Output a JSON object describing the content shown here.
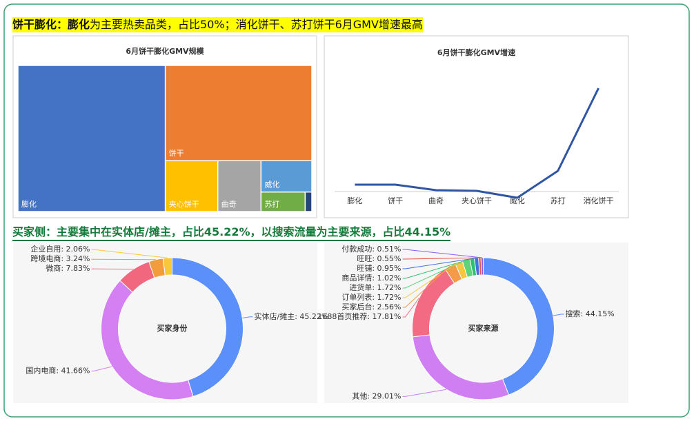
{
  "headings": [
    {
      "lead": "饼干膨化：膨化",
      "text": "为主要热卖品类，占比50%；消化饼干、苏打饼干6月GMV增速最高"
    },
    {
      "text": "买家侧：主要集中在实体店/摊主，占比45.22%，以搜索流量为主要来源，占比44.15%"
    }
  ],
  "chart_data": [
    {
      "type": "treemap",
      "title": "6月饼干膨化GMV规模",
      "categories": [
        "膨化",
        "饼干",
        "夹心饼干",
        "曲奇",
        "威化",
        "苏打",
        null
      ],
      "values": [
        50,
        32.4,
        6.2,
        5.1,
        3.7,
        2,
        0.3
      ],
      "colors": [
        "#4472c4",
        "#ed7d31",
        "#ffc000",
        "#a5a5a5",
        "#5b9bd5",
        "#70ad47",
        "#264478"
      ]
    },
    {
      "type": "line",
      "title": "6月饼干膨化GMV增速",
      "categories": [
        "膨化",
        "饼干",
        "曲奇",
        "夹心饼干",
        "威化",
        "苏打",
        "消化饼干"
      ],
      "values": [
        10,
        10,
        2,
        1,
        -9,
        30,
        150
      ],
      "color": "#2f55a4"
    },
    {
      "type": "donut",
      "center_label": "买家身份",
      "values": [
        45.22,
        41.66,
        7.83,
        3.24,
        2.06
      ],
      "value_labels": [
        "实体店/摊主: 45.22%",
        "国内电商: 41.66%",
        "微商: 7.83%",
        "跨境电商: 3.24%",
        "企业自用: 2.06%"
      ],
      "colors": [
        "#5b8ff9",
        "#d580f2",
        "#f0677e",
        "#f39c3c",
        "#f8c83a"
      ]
    },
    {
      "type": "donut",
      "center_label": "买家来源",
      "values": [
        44.15,
        29.01,
        17.81,
        2.56,
        1.72,
        1.72,
        1.02,
        0.95,
        0.55,
        0.51
      ],
      "value_labels": [
        "搜索: 44.15%",
        "其他: 29.01%",
        "1688首页推荐: 17.81%",
        "买家后台: 2.56%",
        "订单列表: 1.72%",
        "进货单: 1.72%",
        "商品详情: 1.02%",
        "旺铺: 0.95%",
        "旺旺: 0.55%",
        "付款成功: 0.51%"
      ],
      "colors": [
        "#5b8ff9",
        "#d07ff2",
        "#f26b82",
        "#f59a47",
        "#f8c63e",
        "#5bd47a",
        "#2fbf71",
        "#3f73e0",
        "#e8524a",
        "#8d5ee8"
      ]
    }
  ]
}
